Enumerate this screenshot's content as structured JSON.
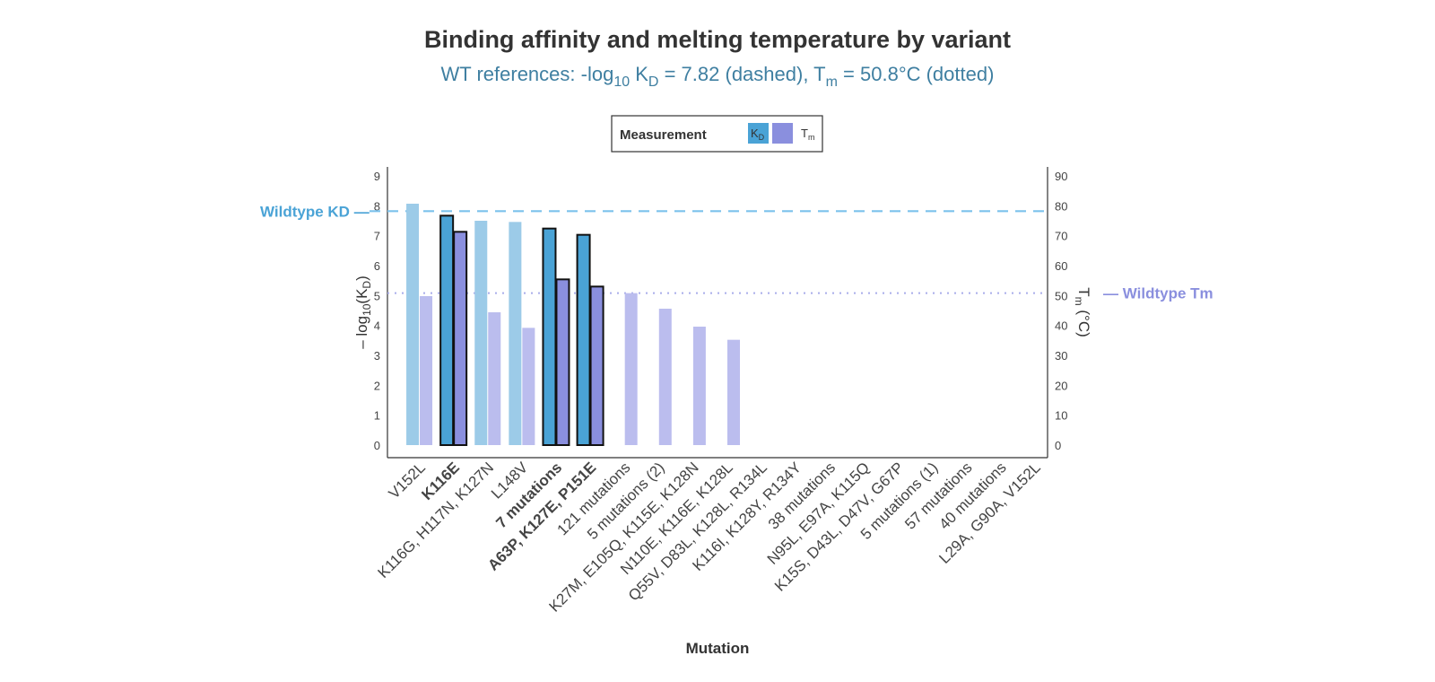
{
  "chart_data": {
    "type": "bar",
    "title": "Binding affinity and melting temperature by variant",
    "subtitle": {
      "prefix": "WT references: -log",
      "log_sub": "10",
      "k": " K",
      "k_sub": "D",
      "mid": " = 7.82 (dashed), T",
      "t_sub": "m",
      "suffix": " = 50.8°C (dotted)"
    },
    "xlabel": "Mutation",
    "ylabel_left": {
      "prefix": "– log",
      "sub1": "10",
      "mid": "(K",
      "sub2": "D",
      "suffix": ")"
    },
    "ylabel_right": {
      "prefix": "T",
      "sub": "m",
      "suffix": " (°C)"
    },
    "ylim_left": [
      0,
      9
    ],
    "ylim_right": [
      0,
      90
    ],
    "yticks_left": [
      "0",
      "1",
      "2",
      "3",
      "4",
      "5",
      "6",
      "7",
      "8",
      "9"
    ],
    "yticks_right": [
      "0",
      "10",
      "20",
      "30",
      "40",
      "50",
      "60",
      "70",
      "80",
      "90"
    ],
    "legend": {
      "title": "Measurement",
      "position": "top-center",
      "entries": [
        {
          "main": "K",
          "sub": "D",
          "color": "#4aa3d6"
        },
        {
          "main": "T",
          "sub": "m",
          "color": "#8a8fde"
        }
      ]
    },
    "reference_lines": {
      "kd": {
        "label": "Wildtype KD",
        "value": 7.82,
        "style": "dashed",
        "color": "#4aa3d6"
      },
      "tm": {
        "label": "Wildtype Tm",
        "value": 50.8,
        "style": "dotted",
        "color": "#8a8fde"
      }
    },
    "categories": [
      "V152L",
      "K116E",
      "K116G, H117N, K127N",
      "L148V",
      "7 mutations",
      "A63P, K127E, P151E",
      "121 mutations",
      "5 mutations (2)",
      "K27M, E105Q, K115E, K128N",
      "N110E, K116E, K128L",
      "Q55V, D83L, K128L, R134L",
      "K116I, K128Y, R134Y",
      "38 mutations",
      "N95L, E97A, K115Q",
      "K15S, D43L, D47V, G67P",
      "5 mutations (1)",
      "57 mutations",
      "40 mutations",
      "L29A, G90A, V152L"
    ],
    "highlighted": [
      false,
      true,
      false,
      false,
      true,
      true,
      false,
      false,
      false,
      false,
      false,
      false,
      false,
      false,
      false,
      false,
      false,
      false,
      false
    ],
    "series": [
      {
        "name": "KD",
        "axis": "left",
        "values": [
          8.07,
          7.67,
          7.5,
          7.46,
          7.24,
          7.03,
          null,
          null,
          null,
          null,
          null,
          null,
          null,
          null,
          null,
          null,
          null,
          null,
          null
        ]
      },
      {
        "name": "Tm",
        "axis": "right",
        "values": [
          49.8,
          71.3,
          44.4,
          39.2,
          55.4,
          53.0,
          50.8,
          45.6,
          39.6,
          35.2,
          null,
          null,
          null,
          null,
          null,
          null,
          null,
          null,
          null
        ]
      }
    ],
    "colors": {
      "kd": "#4aa3d6",
      "tm": "#8a8fde",
      "kd_muted": "#9ccbe8",
      "tm_muted": "#bbbdee",
      "subtitle": "#3f7fa1",
      "highlight_outline": "#111111"
    },
    "grid": false
  }
}
